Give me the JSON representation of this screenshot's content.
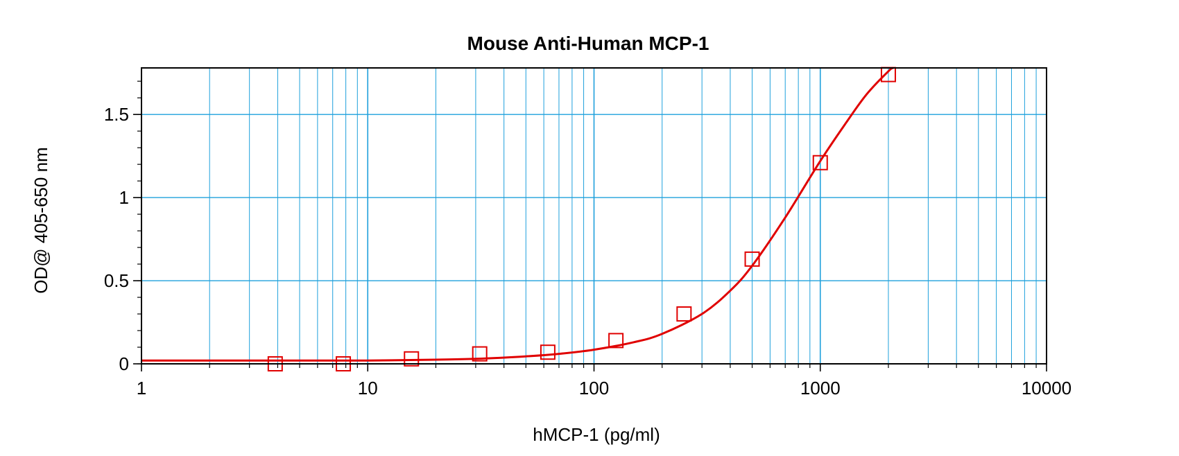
{
  "chart_data": {
    "type": "scatter",
    "title": "Mouse Anti-Human MCP-1",
    "xlabel": "hMCP-1 (pg/ml)",
    "ylabel": "OD@ 405-650 nm",
    "x_scale": "log",
    "xlim": [
      1,
      10000
    ],
    "ylim": [
      0,
      1.78
    ],
    "x_ticks": [
      1,
      10,
      100,
      1000,
      10000
    ],
    "x_tick_labels": [
      "1",
      "10",
      "100",
      "1000",
      "10000"
    ],
    "y_ticks": [
      0,
      0.5,
      1,
      1.5
    ],
    "y_tick_labels": [
      "0",
      "0.5",
      "1",
      "1.5"
    ],
    "grid": true,
    "colors": {
      "grid": "#1ea0dc",
      "series": "#e00000",
      "axis": "#000000"
    },
    "series": [
      {
        "marker": "square",
        "x": [
          3.9,
          7.8,
          15.6,
          31.25,
          62.5,
          125,
          250,
          500,
          1000,
          2000
        ],
        "y": [
          0.0,
          0.0,
          0.03,
          0.06,
          0.07,
          0.14,
          0.3,
          0.63,
          1.21,
          1.74
        ]
      }
    ],
    "fit_curve": {
      "x": [
        1,
        5,
        10,
        20,
        30,
        50,
        70,
        100,
        150,
        200,
        300,
        400,
        500,
        700,
        1000,
        1300,
        1600,
        2000,
        2100
      ],
      "y": [
        0.02,
        0.02,
        0.02,
        0.025,
        0.03,
        0.045,
        0.06,
        0.085,
        0.13,
        0.18,
        0.3,
        0.44,
        0.59,
        0.88,
        1.22,
        1.45,
        1.62,
        1.76,
        1.78
      ]
    }
  }
}
